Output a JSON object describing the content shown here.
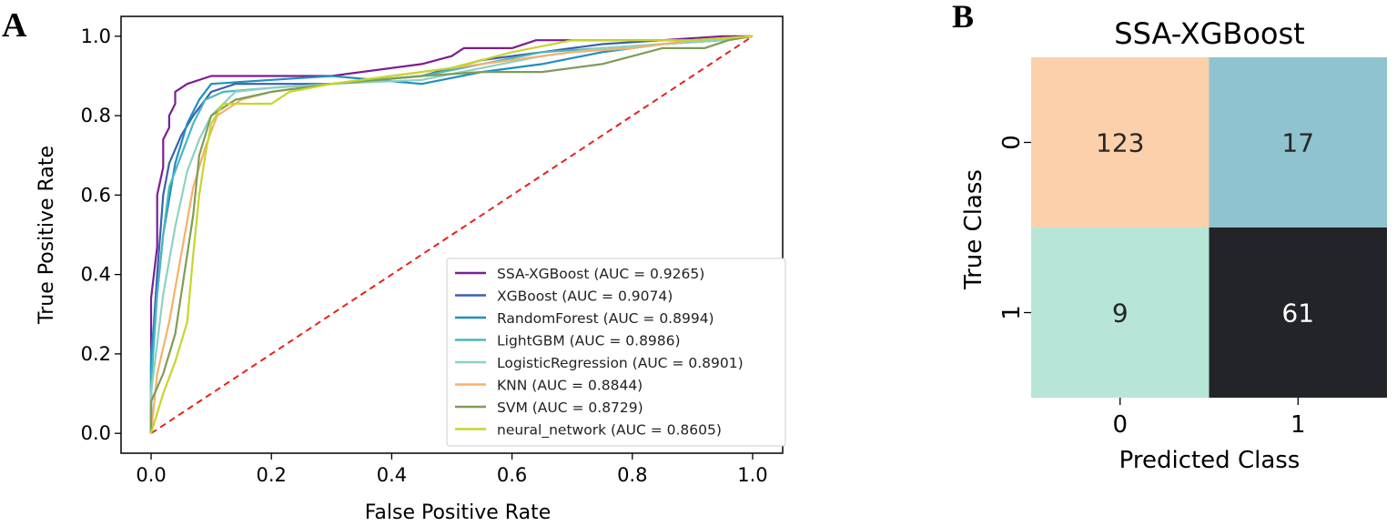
{
  "chart_data": [
    {
      "type": "line",
      "panel_label": "A",
      "title": "",
      "xlabel": "False Positive Rate",
      "ylabel": "True Positive Rate",
      "xlim": [
        -0.05,
        1.05
      ],
      "ylim": [
        -0.05,
        1.05
      ],
      "xticks": [
        "0.0",
        "0.2",
        "0.4",
        "0.6",
        "0.8",
        "1.0"
      ],
      "yticks": [
        "0.0",
        "0.2",
        "0.4",
        "0.6",
        "0.8",
        "1.0"
      ],
      "legend_position": "lower-right",
      "grid": false,
      "reference_line": {
        "name": "chance",
        "x": [
          0,
          1
        ],
        "y": [
          0,
          1
        ],
        "color": "#e8201c",
        "style": "dashed"
      },
      "series": [
        {
          "name": "SSA-XGBoost (AUC = 0.9265)",
          "color": "#7b1f8f",
          "x": [
            0,
            0,
            0.01,
            0.01,
            0.02,
            0.02,
            0.03,
            0.03,
            0.04,
            0.04,
            0.06,
            0.1,
            0.15,
            0.2,
            0.3,
            0.45,
            0.5,
            0.52,
            0.6,
            0.64,
            0.75,
            0.85,
            0.95,
            1
          ],
          "y": [
            0,
            0.34,
            0.47,
            0.6,
            0.67,
            0.74,
            0.77,
            0.8,
            0.83,
            0.86,
            0.88,
            0.9,
            0.9,
            0.9,
            0.9,
            0.93,
            0.95,
            0.97,
            0.97,
            0.99,
            0.99,
            0.99,
            1,
            1
          ]
        },
        {
          "name": "XGBoost (AUC = 0.9074)",
          "color": "#3c5fb0",
          "x": [
            0,
            0,
            0.01,
            0.02,
            0.03,
            0.05,
            0.07,
            0.1,
            0.14,
            0.2,
            0.3,
            0.45,
            0.55,
            0.65,
            0.75,
            0.85,
            0.95,
            1
          ],
          "y": [
            0,
            0.17,
            0.4,
            0.6,
            0.68,
            0.75,
            0.8,
            0.86,
            0.88,
            0.88,
            0.88,
            0.9,
            0.94,
            0.96,
            0.98,
            0.99,
            0.99,
            1
          ]
        },
        {
          "name": "RandomForest (AUC = 0.8994)",
          "color": "#1f8fbf",
          "x": [
            0,
            0,
            0.02,
            0.04,
            0.06,
            0.08,
            0.1,
            0.2,
            0.3,
            0.45,
            0.55,
            0.65,
            0.75,
            0.85,
            0.95,
            1
          ],
          "y": [
            0,
            0.2,
            0.5,
            0.68,
            0.78,
            0.84,
            0.88,
            0.89,
            0.9,
            0.88,
            0.91,
            0.93,
            0.96,
            0.98,
            0.99,
            1
          ]
        },
        {
          "name": "LightGBM (AUC = 0.8986)",
          "color": "#4ab7bd",
          "x": [
            0,
            0,
            0.01,
            0.02,
            0.03,
            0.05,
            0.07,
            0.09,
            0.12,
            0.2,
            0.3,
            0.45,
            0.55,
            0.65,
            0.75,
            0.85,
            0.95,
            1
          ],
          "y": [
            0,
            0.12,
            0.35,
            0.5,
            0.62,
            0.7,
            0.78,
            0.84,
            0.86,
            0.87,
            0.88,
            0.9,
            0.93,
            0.96,
            0.97,
            0.98,
            0.99,
            1
          ]
        },
        {
          "name": "LogisticRegression (AUC = 0.8901)",
          "color": "#8fd1c0",
          "x": [
            0,
            0,
            0.02,
            0.04,
            0.06,
            0.08,
            0.1,
            0.14,
            0.2,
            0.3,
            0.45,
            0.55,
            0.65,
            0.75,
            0.85,
            0.95,
            1
          ],
          "y": [
            0,
            0.1,
            0.35,
            0.52,
            0.66,
            0.74,
            0.8,
            0.86,
            0.87,
            0.88,
            0.89,
            0.92,
            0.95,
            0.97,
            0.98,
            0.99,
            1
          ]
        },
        {
          "name": "KNN (AUC = 0.8844)",
          "color": "#f5b16b",
          "x": [
            0,
            0.01,
            0.03,
            0.05,
            0.07,
            0.09,
            0.11,
            0.15,
            0.2,
            0.3,
            0.4,
            0.5,
            0.6,
            0.7,
            0.8,
            0.9,
            1
          ],
          "y": [
            0,
            0.15,
            0.28,
            0.45,
            0.62,
            0.72,
            0.8,
            0.84,
            0.86,
            0.88,
            0.9,
            0.92,
            0.94,
            0.96,
            0.97,
            0.99,
            1
          ]
        },
        {
          "name": "SVM (AUC = 0.8729)",
          "color": "#7f9c57",
          "x": [
            0,
            0,
            0.02,
            0.04,
            0.05,
            0.06,
            0.07,
            0.08,
            0.1,
            0.14,
            0.2,
            0.3,
            0.45,
            0.55,
            0.65,
            0.75,
            0.85,
            0.92,
            0.96,
            1
          ],
          "y": [
            0,
            0.08,
            0.15,
            0.25,
            0.35,
            0.45,
            0.55,
            0.7,
            0.8,
            0.84,
            0.86,
            0.88,
            0.9,
            0.91,
            0.91,
            0.93,
            0.97,
            0.97,
            0.99,
            1
          ]
        },
        {
          "name": "neural_network (AUC = 0.8605)",
          "color": "#c7d62a",
          "x": [
            0,
            0.02,
            0.04,
            0.06,
            0.07,
            0.08,
            0.09,
            0.1,
            0.12,
            0.2,
            0.23,
            0.3,
            0.4,
            0.5,
            0.6,
            0.7,
            0.8,
            0.9,
            1
          ],
          "y": [
            0,
            0.1,
            0.18,
            0.28,
            0.45,
            0.6,
            0.7,
            0.78,
            0.83,
            0.83,
            0.86,
            0.88,
            0.9,
            0.92,
            0.96,
            0.99,
            0.99,
            0.99,
            1
          ]
        }
      ]
    },
    {
      "type": "heatmap",
      "panel_label": "B",
      "title": "SSA-XGBoost",
      "xlabel": "Predicted Class",
      "ylabel": "True Class",
      "x_categories": [
        "0",
        "1"
      ],
      "y_categories": [
        "0",
        "1"
      ],
      "values": [
        [
          123,
          17
        ],
        [
          9,
          61
        ]
      ],
      "cell_colors": [
        [
          "#fbd0aa",
          "#8ec3cf"
        ],
        [
          "#b7e5d8",
          "#23232a"
        ]
      ],
      "text_colors": [
        [
          "#262626",
          "#262626"
        ],
        [
          "#262626",
          "#ffffff"
        ]
      ]
    }
  ]
}
